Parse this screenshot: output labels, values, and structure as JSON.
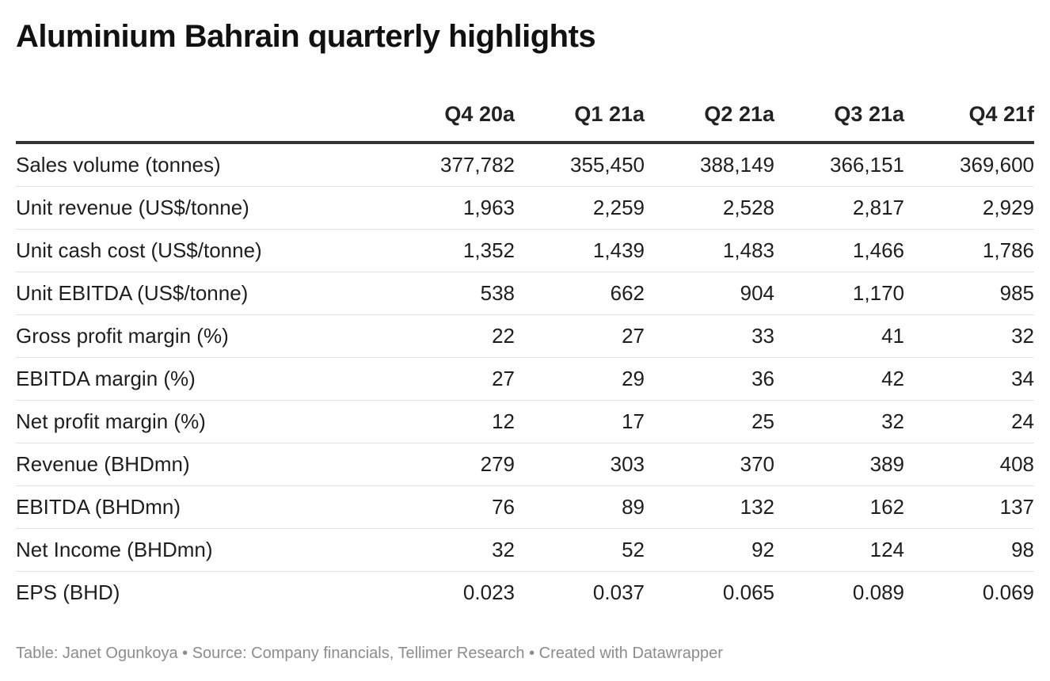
{
  "chart_data": {
    "type": "table",
    "title": "Aluminium Bahrain quarterly highlights",
    "columns": [
      "Q4 20a",
      "Q1 21a",
      "Q2 21a",
      "Q3 21a",
      "Q4 21f"
    ],
    "rows": [
      {
        "label": "Sales volume (tonnes)",
        "values": [
          "377,782",
          "355,450",
          "388,149",
          "366,151",
          "369,600"
        ]
      },
      {
        "label": "Unit revenue (US$/tonne)",
        "values": [
          "1,963",
          "2,259",
          "2,528",
          "2,817",
          "2,929"
        ]
      },
      {
        "label": "Unit cash cost (US$/tonne)",
        "values": [
          "1,352",
          "1,439",
          "1,483",
          "1,466",
          "1,786"
        ]
      },
      {
        "label": "Unit EBITDA (US$/tonne)",
        "values": [
          "538",
          "662",
          "904",
          "1,170",
          "985"
        ]
      },
      {
        "label": "Gross profit margin (%)",
        "values": [
          "22",
          "27",
          "33",
          "41",
          "32"
        ]
      },
      {
        "label": "EBITDA margin (%)",
        "values": [
          "27",
          "29",
          "36",
          "42",
          "34"
        ]
      },
      {
        "label": "Net profit margin (%)",
        "values": [
          "12",
          "17",
          "25",
          "32",
          "24"
        ]
      },
      {
        "label": "Revenue (BHDmn)",
        "values": [
          "279",
          "303",
          "370",
          "389",
          "408"
        ]
      },
      {
        "label": "EBITDA (BHDmn)",
        "values": [
          "76",
          "89",
          "132",
          "162",
          "137"
        ]
      },
      {
        "label": "Net Income (BHDmn)",
        "values": [
          "32",
          "52",
          "92",
          "124",
          "98"
        ]
      },
      {
        "label": "EPS (BHD)",
        "values": [
          "0.023",
          "0.037",
          "0.065",
          "0.089",
          "0.069"
        ]
      }
    ]
  },
  "footer": "Table: Janet Ogunkoya • Source: Company financials, Tellimer Research • Created with Datawrapper"
}
